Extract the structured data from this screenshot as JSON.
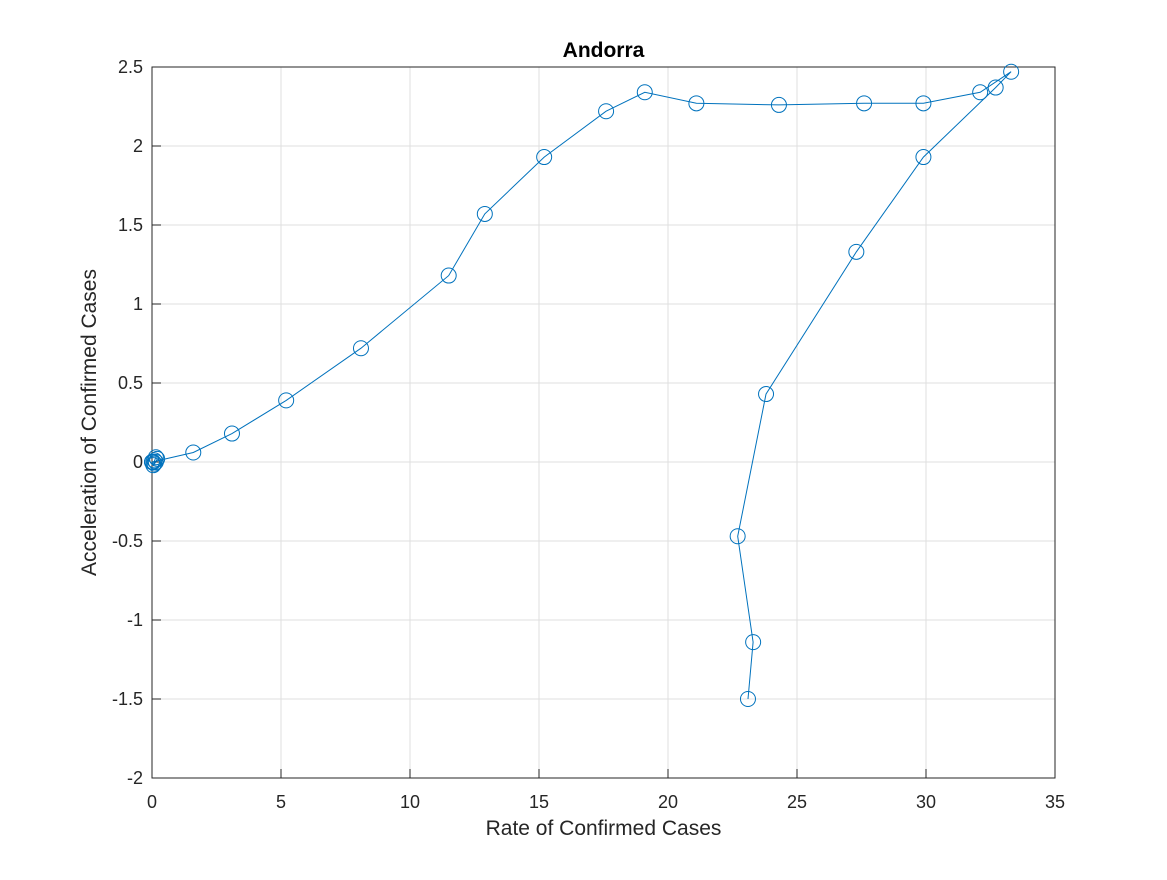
{
  "chart_data": {
    "type": "line",
    "title": "Andorra",
    "xlabel": "Rate of Confirmed Cases",
    "ylabel": "Acceleration of Confirmed Cases",
    "xlim": [
      0,
      35
    ],
    "ylim": [
      -2,
      2.5
    ],
    "xticks": [
      0,
      5,
      10,
      15,
      20,
      25,
      30,
      35
    ],
    "yticks": [
      -2,
      -1.5,
      -1,
      -0.5,
      0,
      0.5,
      1,
      1.5,
      2,
      2.5
    ],
    "xtick_labels": [
      "0",
      "5",
      "10",
      "15",
      "20",
      "25",
      "30",
      "35"
    ],
    "ytick_labels": [
      "-2",
      "-1.5",
      "-1",
      "-0.5",
      "0",
      "0.5",
      "1",
      "1.5",
      "2",
      "2.5"
    ],
    "grid": true,
    "marker": "circle",
    "color": "#0072BD",
    "series": [
      {
        "x": [
          0,
          0.05,
          0.1,
          0.15,
          0.2,
          0.15,
          0.1,
          0.05,
          0,
          1.6,
          3.1,
          5.2,
          8.1,
          11.5,
          12.9,
          15.2,
          17.6,
          19.1,
          21.1,
          24.3,
          27.6,
          29.9,
          32.1,
          33.3,
          32.7,
          29.9,
          27.3,
          23.8,
          22.7,
          23.3,
          23.1
        ],
        "y": [
          0,
          -0.02,
          0.01,
          0.03,
          0.02,
          0.0,
          -0.01,
          0.0,
          0,
          0.06,
          0.18,
          0.39,
          0.72,
          1.18,
          1.57,
          1.93,
          2.22,
          2.34,
          2.27,
          2.26,
          2.27,
          2.27,
          2.34,
          2.47,
          2.37,
          1.93,
          1.33,
          0.43,
          -0.47,
          -1.14,
          -1.5
        ]
      }
    ]
  }
}
